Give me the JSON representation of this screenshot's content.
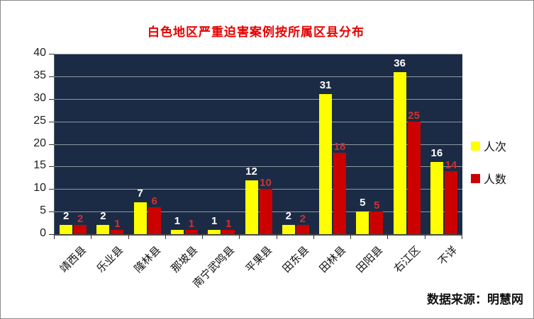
{
  "chart_data": {
    "type": "bar",
    "title": "白色地区严重迫害案例按所属区县分布",
    "title_color": "#e60000",
    "categories": [
      "靖西县",
      "乐业县",
      "隆林县",
      "那坡县",
      "南宁武鸣县",
      "平果县",
      "田东县",
      "田林县",
      "田阳县",
      "右江区",
      "不详"
    ],
    "series": [
      {
        "name": "人次",
        "color": "#ffff00",
        "label_color": "#ffffff",
        "values": [
          2,
          2,
          7,
          1,
          1,
          12,
          2,
          31,
          5,
          36,
          16
        ]
      },
      {
        "name": "人数",
        "color": "#cd0000",
        "label_color": "#d03030",
        "values": [
          2,
          1,
          6,
          1,
          1,
          10,
          2,
          18,
          5,
          25,
          14
        ]
      }
    ],
    "ylim": [
      0,
      40
    ],
    "yticks": [
      0,
      5,
      10,
      15,
      20,
      25,
      30,
      35,
      40
    ],
    "grid": true,
    "plot_bg": "#1b2b45",
    "gridline_color": "#8f98a1",
    "legend_position": "right",
    "source_note": "数据来源：明慧网"
  }
}
